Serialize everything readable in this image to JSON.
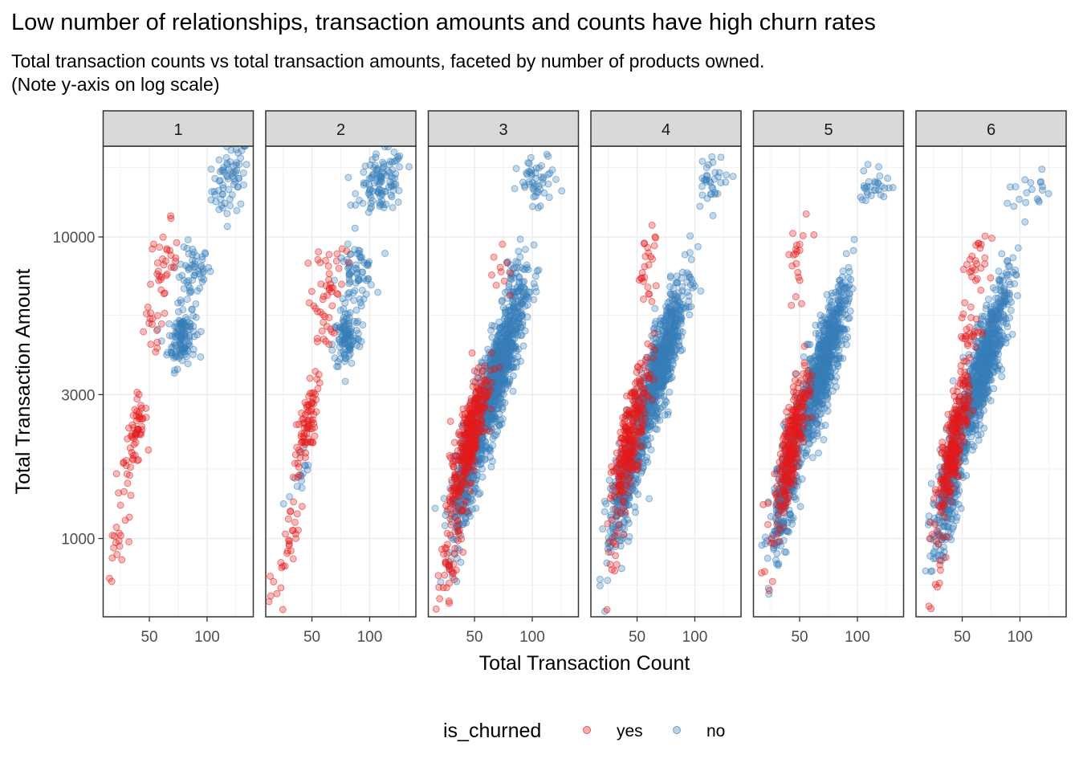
{
  "title": "Low number of relationships, transaction amounts and counts have high churn rates",
  "subtitle": "Total transaction counts vs total transaction amounts, faceted by number of products owned.\n(Note y-axis on log scale)",
  "chart_data": {
    "type": "scatter",
    "xlabel": "Total Transaction Count",
    "ylabel": "Total Transaction Amount",
    "x_scale": "linear",
    "y_scale": "log",
    "xlim": [
      10,
      140
    ],
    "ylim": [
      550,
      20000
    ],
    "x_ticks": [
      50,
      100
    ],
    "y_ticks": [
      1000,
      3000,
      10000
    ],
    "grid": true,
    "legend": {
      "title": "is_churned",
      "position": "bottom",
      "entries": [
        "yes",
        "no"
      ]
    },
    "colors": {
      "yes": "#e41a1c",
      "no": "#377eb8"
    },
    "facets": [
      "1",
      "2",
      "3",
      "4",
      "5",
      "6"
    ],
    "clusters": [
      [
        {
          "s": "no",
          "n": 70,
          "cx": 120,
          "cy": 15500,
          "sx": 8,
          "sy": 0.06,
          "c": 0.3
        },
        {
          "s": "no",
          "n": 55,
          "cx": 88,
          "cy": 7600,
          "sx": 7,
          "sy": 0.05,
          "c": 0.3
        },
        {
          "s": "yes",
          "n": 35,
          "cx": 63,
          "cy": 7900,
          "sx": 6,
          "sy": 0.07,
          "c": 0.2
        },
        {
          "s": "no",
          "n": 130,
          "cx": 78,
          "cy": 4700,
          "sx": 6,
          "sy": 0.05,
          "c": 0.2
        },
        {
          "s": "yes",
          "n": 12,
          "cx": 52,
          "cy": 4900,
          "sx": 5,
          "sy": 0.04,
          "c": 0
        },
        {
          "s": "yes",
          "n": 60,
          "cx": 38,
          "cy": 2200,
          "sx": 5,
          "sy": 0.07,
          "c": 0.6
        },
        {
          "s": "yes",
          "n": 22,
          "cx": 25,
          "cy": 1050,
          "sx": 8,
          "sy": 0.12,
          "c": 0.8
        }
      ],
      [
        {
          "s": "no",
          "n": 110,
          "cx": 110,
          "cy": 15000,
          "sx": 10,
          "sy": 0.05,
          "c": 0.2
        },
        {
          "s": "no",
          "n": 70,
          "cx": 88,
          "cy": 7500,
          "sx": 8,
          "sy": 0.05,
          "c": 0.2
        },
        {
          "s": "yes",
          "n": 35,
          "cx": 65,
          "cy": 7600,
          "sx": 7,
          "sy": 0.06,
          "c": 0.2
        },
        {
          "s": "no",
          "n": 110,
          "cx": 80,
          "cy": 4600,
          "sx": 6,
          "sy": 0.05,
          "c": 0.2
        },
        {
          "s": "yes",
          "n": 15,
          "cx": 60,
          "cy": 5000,
          "sx": 5,
          "sy": 0.04,
          "c": 0
        },
        {
          "s": "yes",
          "n": 80,
          "cx": 45,
          "cy": 2300,
          "sx": 5,
          "sy": 0.08,
          "c": 0.7
        },
        {
          "s": "no",
          "n": 15,
          "cx": 40,
          "cy": 1550,
          "sx": 5,
          "sy": 0.06,
          "c": 0.5
        },
        {
          "s": "yes",
          "n": 35,
          "cx": 28,
          "cy": 930,
          "sx": 7,
          "sy": 0.12,
          "c": 0.8
        }
      ],
      [
        {
          "s": "no",
          "n": 50,
          "cx": 105,
          "cy": 15000,
          "sx": 9,
          "sy": 0.05,
          "c": 0.2
        },
        {
          "s": "no",
          "n": 25,
          "cx": 83,
          "cy": 7500,
          "sx": 4,
          "sy": 0.05,
          "c": 0.2
        },
        {
          "s": "yes",
          "n": 10,
          "cx": 72,
          "cy": 7600,
          "sx": 7,
          "sy": 0.06,
          "c": 0.2
        },
        {
          "s": "no",
          "n": 850,
          "cx": 70,
          "cy": 3500,
          "sx": 12,
          "sy": 0.15,
          "c": 0.85
        },
        {
          "s": "yes",
          "n": 350,
          "cx": 45,
          "cy": 2100,
          "sx": 8,
          "sy": 0.12,
          "c": 0.8
        },
        {
          "s": "no",
          "n": 250,
          "cx": 43,
          "cy": 1600,
          "sx": 8,
          "sy": 0.12,
          "c": 0.7
        },
        {
          "s": "yes",
          "n": 50,
          "cx": 30,
          "cy": 900,
          "sx": 6,
          "sy": 0.1,
          "c": 0.7
        }
      ],
      [
        {
          "s": "no",
          "n": 35,
          "cx": 115,
          "cy": 15500,
          "sx": 7,
          "sy": 0.04,
          "c": 0.2
        },
        {
          "s": "yes",
          "n": 25,
          "cx": 60,
          "cy": 8200,
          "sx": 5,
          "sy": 0.06,
          "c": 0.3
        },
        {
          "s": "no",
          "n": 750,
          "cx": 70,
          "cy": 3700,
          "sx": 11,
          "sy": 0.14,
          "c": 0.85
        },
        {
          "s": "yes",
          "n": 280,
          "cx": 45,
          "cy": 2200,
          "sx": 8,
          "sy": 0.12,
          "c": 0.8
        },
        {
          "s": "no",
          "n": 280,
          "cx": 40,
          "cy": 1500,
          "sx": 8,
          "sy": 0.12,
          "c": 0.7
        },
        {
          "s": "yes",
          "n": 15,
          "cx": 30,
          "cy": 950,
          "sx": 4,
          "sy": 0.1,
          "c": 0.7
        }
      ],
      [
        {
          "s": "no",
          "n": 30,
          "cx": 115,
          "cy": 15000,
          "sx": 7,
          "sy": 0.03,
          "c": 0.2
        },
        {
          "s": "yes",
          "n": 20,
          "cx": 48,
          "cy": 8000,
          "sx": 4,
          "sy": 0.09,
          "c": 0.3
        },
        {
          "s": "no",
          "n": 750,
          "cx": 70,
          "cy": 3700,
          "sx": 11,
          "sy": 0.14,
          "c": 0.85
        },
        {
          "s": "yes",
          "n": 280,
          "cx": 44,
          "cy": 2100,
          "sx": 7,
          "sy": 0.12,
          "c": 0.8
        },
        {
          "s": "no",
          "n": 280,
          "cx": 38,
          "cy": 1450,
          "sx": 7,
          "sy": 0.12,
          "c": 0.7
        },
        {
          "s": "yes",
          "n": 12,
          "cx": 25,
          "cy": 900,
          "sx": 6,
          "sy": 0.1,
          "c": 0.5
        }
      ],
      [
        {
          "s": "no",
          "n": 18,
          "cx": 110,
          "cy": 14000,
          "sx": 10,
          "sy": 0.03,
          "c": 0.2
        },
        {
          "s": "yes",
          "n": 25,
          "cx": 65,
          "cy": 8400,
          "sx": 6,
          "sy": 0.06,
          "c": 0.2
        },
        {
          "s": "no",
          "n": 750,
          "cx": 68,
          "cy": 3700,
          "sx": 11,
          "sy": 0.14,
          "c": 0.85
        },
        {
          "s": "yes",
          "n": 25,
          "cx": 58,
          "cy": 4900,
          "sx": 5,
          "sy": 0.04,
          "c": 0
        },
        {
          "s": "yes",
          "n": 280,
          "cx": 43,
          "cy": 2100,
          "sx": 7,
          "sy": 0.12,
          "c": 0.8
        },
        {
          "s": "no",
          "n": 280,
          "cx": 38,
          "cy": 1450,
          "sx": 7,
          "sy": 0.12,
          "c": 0.7
        },
        {
          "s": "yes",
          "n": 15,
          "cx": 30,
          "cy": 880,
          "sx": 5,
          "sy": 0.1,
          "c": 0.5
        }
      ]
    ]
  }
}
